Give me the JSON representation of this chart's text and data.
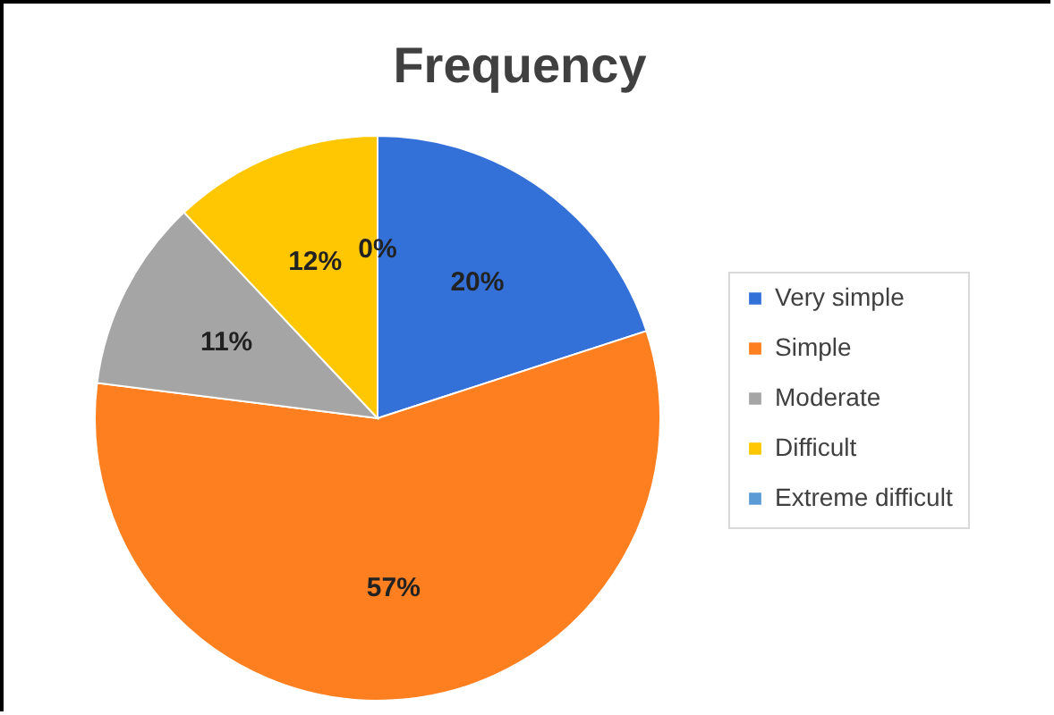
{
  "chart_data": {
    "type": "pie",
    "title": "Frequency",
    "categories": [
      "Very simple",
      "Simple",
      "Moderate",
      "Difficult",
      "Extreme difficult"
    ],
    "values": [
      20,
      57,
      11,
      12,
      0
    ],
    "colors": [
      "#3370d8",
      "#fd7f20",
      "#a5a5a5",
      "#ffc702",
      "#5b9bd5"
    ],
    "value_labels": [
      "20%",
      "57%",
      "11%",
      "12%",
      "0%"
    ],
    "legend": "right"
  }
}
